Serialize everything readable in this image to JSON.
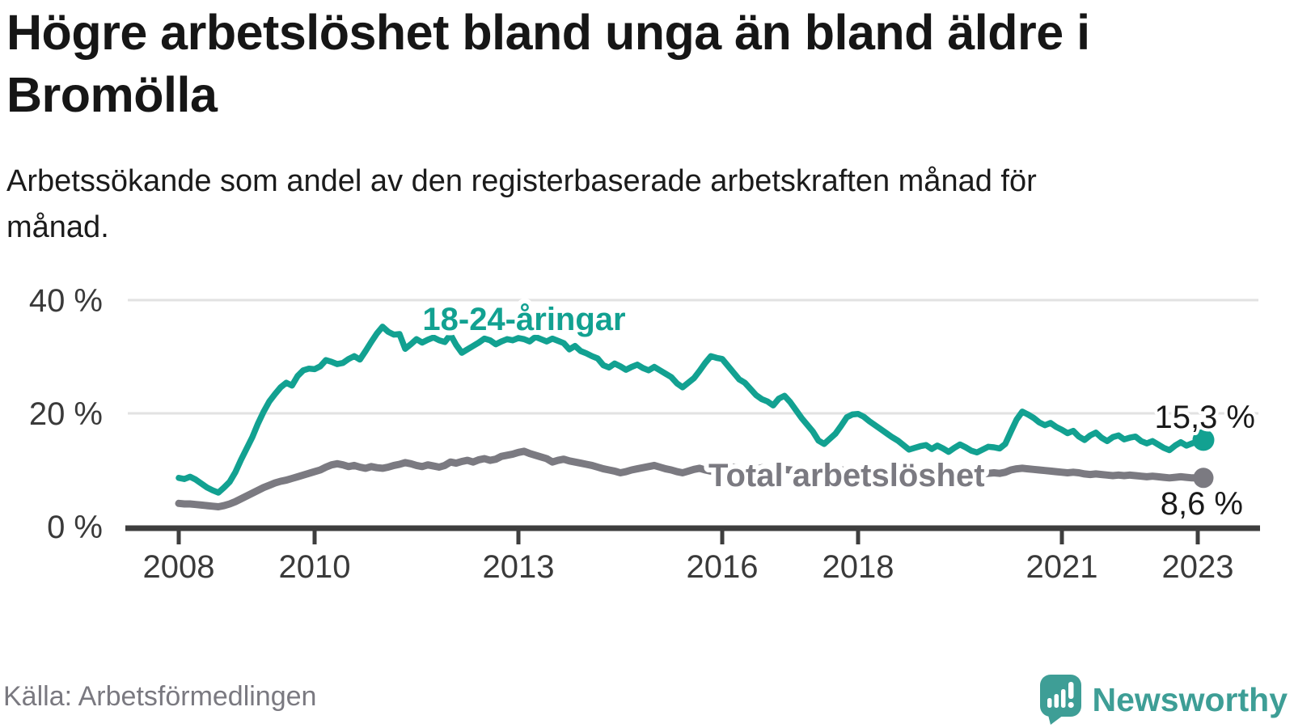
{
  "header": {
    "title": "Högre arbetslöshet bland unga än bland äldre i Bromölla",
    "subtitle": "Arbetssökande som andel av den registerbaserade arbetskraften månad för månad."
  },
  "chart_data": {
    "type": "line",
    "title": "Högre arbetslöshet bland unga än bland äldre i Bromölla",
    "xlabel": "",
    "ylabel": "",
    "unit": "%",
    "x_start": "2008-01",
    "x_end": "2023-02",
    "x_step": "1 month",
    "xtick_labels": [
      "2008",
      "2010",
      "2013",
      "2016",
      "2018",
      "2021",
      "2023"
    ],
    "yticks": [
      0,
      20,
      40
    ],
    "ytick_labels": [
      "0 %",
      "20 %",
      "40 %"
    ],
    "ylim": [
      0,
      43
    ],
    "grid": "horizontal-only",
    "legend_position": "inline-labels",
    "series": [
      {
        "name": "18-24-åringar",
        "color": "#12a191",
        "end_value": 15.3,
        "end_label": "15,3 %",
        "values": [
          8.6,
          8.4,
          8.8,
          8.3,
          7.6,
          6.9,
          6.4,
          6.0,
          6.9,
          7.9,
          9.6,
          11.8,
          13.8,
          15.8,
          18.2,
          20.3,
          22.1,
          23.4,
          24.6,
          25.4,
          24.9,
          26.6,
          27.6,
          27.9,
          27.8,
          28.3,
          29.4,
          29.1,
          28.7,
          28.9,
          29.6,
          30.1,
          29.5,
          31.0,
          32.6,
          34.1,
          35.3,
          34.4,
          33.9,
          34.0,
          31.4,
          32.2,
          33.1,
          32.5,
          33.0,
          33.4,
          32.9,
          32.6,
          33.9,
          32.1,
          30.7,
          31.3,
          31.9,
          32.5,
          33.2,
          32.9,
          32.2,
          32.7,
          33.1,
          32.9,
          33.3,
          33.1,
          32.7,
          33.5,
          33.1,
          32.7,
          33.2,
          32.8,
          32.4,
          31.3,
          31.9,
          31.0,
          30.6,
          30.1,
          29.7,
          28.5,
          28.1,
          28.8,
          28.3,
          27.7,
          28.2,
          28.6,
          28.0,
          27.6,
          28.2,
          27.6,
          27.0,
          26.4,
          25.3,
          24.6,
          25.4,
          26.2,
          27.5,
          28.9,
          30.1,
          29.8,
          29.6,
          28.4,
          27.2,
          26.0,
          25.4,
          24.3,
          23.2,
          22.5,
          22.1,
          21.4,
          22.6,
          23.1,
          22.0,
          20.6,
          19.2,
          18.0,
          16.8,
          15.2,
          14.6,
          15.5,
          16.4,
          17.8,
          19.3,
          19.8,
          19.9,
          19.4,
          18.6,
          17.9,
          17.2,
          16.5,
          15.8,
          15.2,
          14.4,
          13.6,
          13.9,
          14.2,
          14.4,
          13.7,
          14.3,
          13.8,
          13.2,
          13.9,
          14.5,
          14.0,
          13.4,
          13.1,
          13.6,
          14.1,
          14.0,
          13.8,
          14.6,
          16.8,
          18.9,
          20.3,
          19.8,
          19.2,
          18.4,
          17.9,
          18.3,
          17.6,
          17.1,
          16.5,
          16.9,
          15.9,
          15.3,
          16.1,
          16.6,
          15.7,
          15.1,
          15.8,
          16.1,
          15.4,
          15.7,
          15.9,
          15.1,
          14.7,
          15.1,
          14.5,
          13.9,
          13.5,
          14.3,
          14.9,
          14.3,
          14.7,
          15.0,
          15.3
        ]
      },
      {
        "name": "Total arbetslöshet",
        "color": "#7b7a81",
        "end_value": 8.6,
        "end_label": "8,6 %",
        "values": [
          4.1,
          4.0,
          4.0,
          3.9,
          3.8,
          3.7,
          3.6,
          3.5,
          3.7,
          4.0,
          4.4,
          4.9,
          5.4,
          5.9,
          6.4,
          6.9,
          7.3,
          7.7,
          8.0,
          8.2,
          8.5,
          8.8,
          9.1,
          9.4,
          9.7,
          10.0,
          10.5,
          10.9,
          11.1,
          10.9,
          10.6,
          10.8,
          10.5,
          10.3,
          10.6,
          10.4,
          10.3,
          10.5,
          10.8,
          11.0,
          11.3,
          11.1,
          10.8,
          10.6,
          10.9,
          10.7,
          10.5,
          10.8,
          11.4,
          11.2,
          11.5,
          11.7,
          11.4,
          11.8,
          12.0,
          11.7,
          11.9,
          12.4,
          12.6,
          12.8,
          13.1,
          13.3,
          12.9,
          12.6,
          12.3,
          12.0,
          11.4,
          11.7,
          11.9,
          11.6,
          11.4,
          11.2,
          11.0,
          10.8,
          10.5,
          10.2,
          10.0,
          9.8,
          9.5,
          9.7,
          10.0,
          10.2,
          10.4,
          10.6,
          10.8,
          10.5,
          10.2,
          10.0,
          9.7,
          9.5,
          9.8,
          10.1,
          10.3,
          10.0,
          9.8,
          10.2,
          10.4,
          10.2,
          10.5,
          10.3,
          10.0,
          9.8,
          10.1,
          10.4,
          10.2,
          10.0,
          10.3,
          10.1,
          10.0,
          9.9,
          9.8,
          9.7,
          9.8,
          9.6,
          9.5,
          9.7,
          9.9,
          10.0,
          9.9,
          9.8,
          9.9,
          9.8,
          9.7,
          9.6,
          9.5,
          9.4,
          9.3,
          9.2,
          9.3,
          9.4,
          9.5,
          9.6,
          9.7,
          9.6,
          9.5,
          9.4,
          9.3,
          9.2,
          9.3,
          9.4,
          9.3,
          9.2,
          9.3,
          9.4,
          9.5,
          9.4,
          9.6,
          10.0,
          10.2,
          10.3,
          10.2,
          10.1,
          10.0,
          9.9,
          9.8,
          9.7,
          9.6,
          9.5,
          9.6,
          9.5,
          9.3,
          9.2,
          9.3,
          9.2,
          9.1,
          9.0,
          9.1,
          9.0,
          9.1,
          9.0,
          8.9,
          8.8,
          8.9,
          8.8,
          8.7,
          8.6,
          8.7,
          8.8,
          8.7,
          8.6,
          8.6,
          8.6
        ]
      }
    ]
  },
  "footer": {
    "source": "Källa: Arbetsförmedlingen",
    "brand": "Newsworthy"
  },
  "colors": {
    "accent_teal": "#12a191",
    "line_gray": "#7b7a81",
    "brand_teal": "#3e9e96",
    "grid_gray": "#e2e2e2",
    "axis_dark": "#3e3e3e",
    "text_dark": "#161616",
    "axis_text": "#3a3a3a",
    "source_text": "#7a7980"
  }
}
